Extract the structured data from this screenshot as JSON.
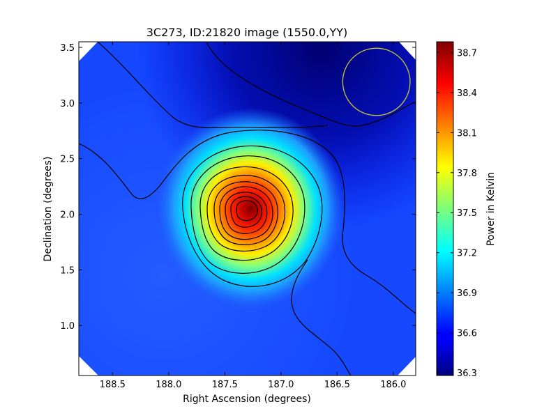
{
  "chart_data": {
    "type": "heatmap",
    "title": "3C273, ID:21820 image (1550.0,YY)",
    "xlabel": "Right Ascension (degrees)",
    "ylabel": "Declination (degrees)",
    "xlim": [
      188.8,
      185.8
    ],
    "ylim": [
      0.55,
      3.55
    ],
    "x_ticks": [
      "188.5",
      "188.0",
      "187.5",
      "187.0",
      "186.5",
      "186.0"
    ],
    "x_tick_values": [
      188.5,
      188.0,
      187.5,
      187.0,
      186.5,
      186.0
    ],
    "y_ticks": [
      "1.0",
      "1.5",
      "2.0",
      "2.5",
      "3.0",
      "3.5"
    ],
    "y_tick_values": [
      1.0,
      1.5,
      2.0,
      2.5,
      3.0,
      3.5
    ],
    "source_peak": {
      "ra": 187.27,
      "dec": 2.05,
      "value": 38.72
    },
    "background_level": 36.6,
    "beam_circle": {
      "ra": 186.15,
      "dec": 3.19,
      "radius_deg": 0.3,
      "color": "#c8c832"
    },
    "colorbar": {
      "label": "Power in Kelvin",
      "range": [
        36.28,
        38.78
      ],
      "colormap": "jet",
      "ticks": [
        "36.3",
        "36.6",
        "36.9",
        "37.2",
        "37.5",
        "37.8",
        "38.1",
        "38.4",
        "38.7"
      ],
      "tick_values": [
        36.3,
        36.6,
        36.9,
        37.2,
        37.5,
        37.8,
        38.1,
        38.4,
        38.7
      ]
    },
    "contours": "black lines"
  }
}
